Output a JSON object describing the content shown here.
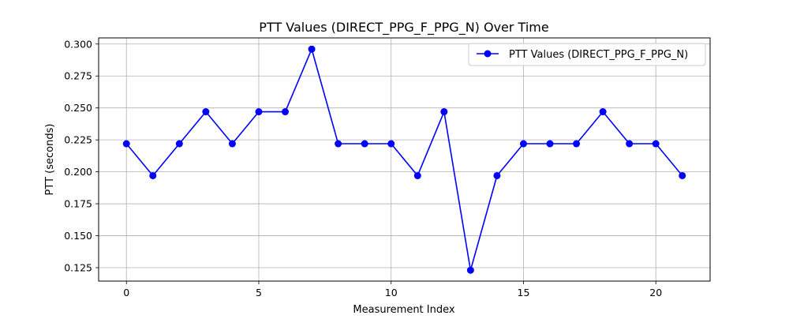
{
  "chart_data": {
    "type": "line",
    "title": "PTT Values (DIRECT_PPG_F_PPG_N) Over Time",
    "xlabel": "Measurement Index",
    "ylabel": "PTT (seconds)",
    "xlim": [
      -1.05,
      22.05
    ],
    "ylim": [
      0.1145,
      0.3048
    ],
    "xticks": [
      0,
      5,
      10,
      15,
      20
    ],
    "yticks": [
      0.125,
      0.15,
      0.175,
      0.2,
      0.225,
      0.25,
      0.275,
      0.3
    ],
    "ytick_labels": [
      "0.125",
      "0.150",
      "0.175",
      "0.200",
      "0.225",
      "0.250",
      "0.275",
      "0.300"
    ],
    "grid": true,
    "legend_position": "top-right",
    "series": [
      {
        "name": "PTT Values (DIRECT_PPG_F_PPG_N)",
        "color": "#0000ff",
        "marker": "circle",
        "x": [
          0,
          1,
          2,
          3,
          4,
          5,
          6,
          7,
          8,
          9,
          10,
          11,
          12,
          13,
          14,
          15,
          16,
          17,
          18,
          19,
          20,
          21
        ],
        "values": [
          0.222,
          0.197,
          0.222,
          0.247,
          0.222,
          0.247,
          0.247,
          0.296,
          0.222,
          0.222,
          0.222,
          0.197,
          0.247,
          0.123,
          0.197,
          0.222,
          0.222,
          0.222,
          0.247,
          0.222,
          0.222,
          0.197
        ]
      }
    ]
  }
}
